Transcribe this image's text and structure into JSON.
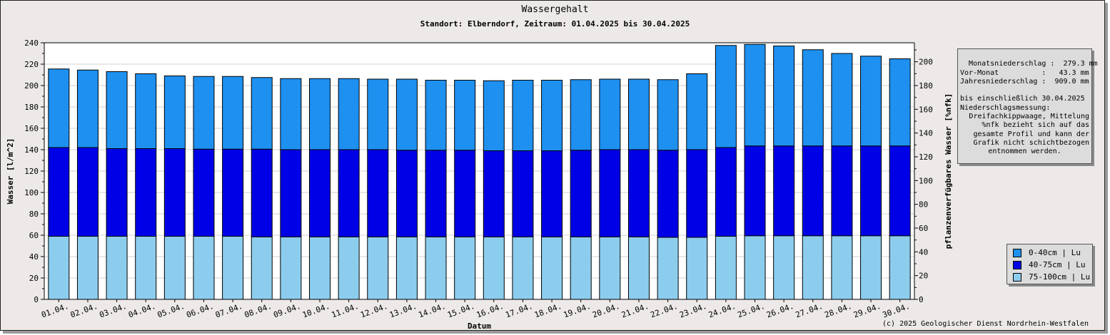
{
  "title": "Wassergehalt",
  "subtitle": "Standort: Elberndorf, Zeitraum: 01.04.2025 bis 30.04.2025",
  "info": {
    "lines": [
      "Monatsniederschlag :  279.3 mm",
      "Vor-Monat          :   43.3 mm",
      "Jahresniederschlag :  909.0 mm",
      "",
      "bis einschließlich 30.04.2025",
      "Niederschlagsmessung:",
      "Dreifachkippwaage, Mittelung",
      "",
      "%nfk bezieht sich auf das",
      "gesamte Profil und kann der",
      "Grafik nicht schichtbezogen",
      "entnommen werden."
    ]
  },
  "legend": {
    "items": [
      {
        "label": "0-40cm | Lu",
        "color": "#1e90f0"
      },
      {
        "label": "40-75cm | Lu",
        "color": "#0000e6"
      },
      {
        "label": "75-100cm | Lu",
        "color": "#8ccdee"
      }
    ]
  },
  "copyright": "(c) 2025 Geologischer Dienst Nordrhein-Westfalen",
  "chart_data": {
    "type": "bar",
    "stacked": true,
    "title": "Wassergehalt",
    "xlabel": "Datum",
    "ylabel": "Wasser [l/m^2]",
    "y2label": "pflanzenverfügbares Wasser [%nfk]",
    "ylim": [
      0,
      240
    ],
    "y2lim": [
      0,
      216
    ],
    "yticks": [
      0,
      20,
      40,
      60,
      80,
      100,
      120,
      140,
      160,
      180,
      200,
      220,
      240
    ],
    "y2ticks": [
      0,
      20,
      40,
      60,
      80,
      100,
      120,
      140,
      160,
      180,
      200
    ],
    "grid": true,
    "legend_position": "bottom-right",
    "categories": [
      "01.04.",
      "02.04.",
      "03.04.",
      "04.04.",
      "05.04.",
      "06.04.",
      "07.04.",
      "08.04.",
      "09.04.",
      "10.04.",
      "11.04.",
      "12.04.",
      "13.04.",
      "14.04.",
      "15.04.",
      "16.04.",
      "17.04.",
      "18.04.",
      "19.04.",
      "20.04.",
      "21.04.",
      "22.04.",
      "23.04.",
      "24.04.",
      "25.04.",
      "26.04.",
      "27.04.",
      "28.04.",
      "29.04.",
      "30.04."
    ],
    "series": [
      {
        "name": "75-100cm | Lu",
        "color": "#8ccdee",
        "values": [
          59,
          59,
          59,
          59,
          59,
          59,
          59,
          58.5,
          58.5,
          58.5,
          58.5,
          58.5,
          58.5,
          58.5,
          58.5,
          58.5,
          58.5,
          58.5,
          58.5,
          58.5,
          58.5,
          58,
          58,
          59,
          59.5,
          59.5,
          59.5,
          59.5,
          59.5,
          59.5
        ]
      },
      {
        "name": "40-75cm | Lu",
        "color": "#0000e6",
        "values": [
          83,
          83,
          82,
          82,
          82,
          81.5,
          81.5,
          82,
          81.5,
          81.5,
          81.5,
          81.5,
          81,
          81,
          81,
          80.5,
          80.5,
          80.5,
          81,
          81.5,
          81.5,
          81.5,
          82,
          83,
          84,
          84,
          84,
          84,
          84,
          84
        ]
      },
      {
        "name": "0-40cm | Lu",
        "color": "#1e90f0",
        "values": [
          73.5,
          72.5,
          72,
          70,
          68,
          68,
          68,
          67,
          66.5,
          66.5,
          66.5,
          66,
          66.5,
          65.5,
          65.5,
          65.5,
          66,
          66,
          66,
          66,
          66,
          66,
          71,
          95.5,
          95,
          93.5,
          90,
          86.5,
          84,
          81.5
        ]
      }
    ]
  }
}
